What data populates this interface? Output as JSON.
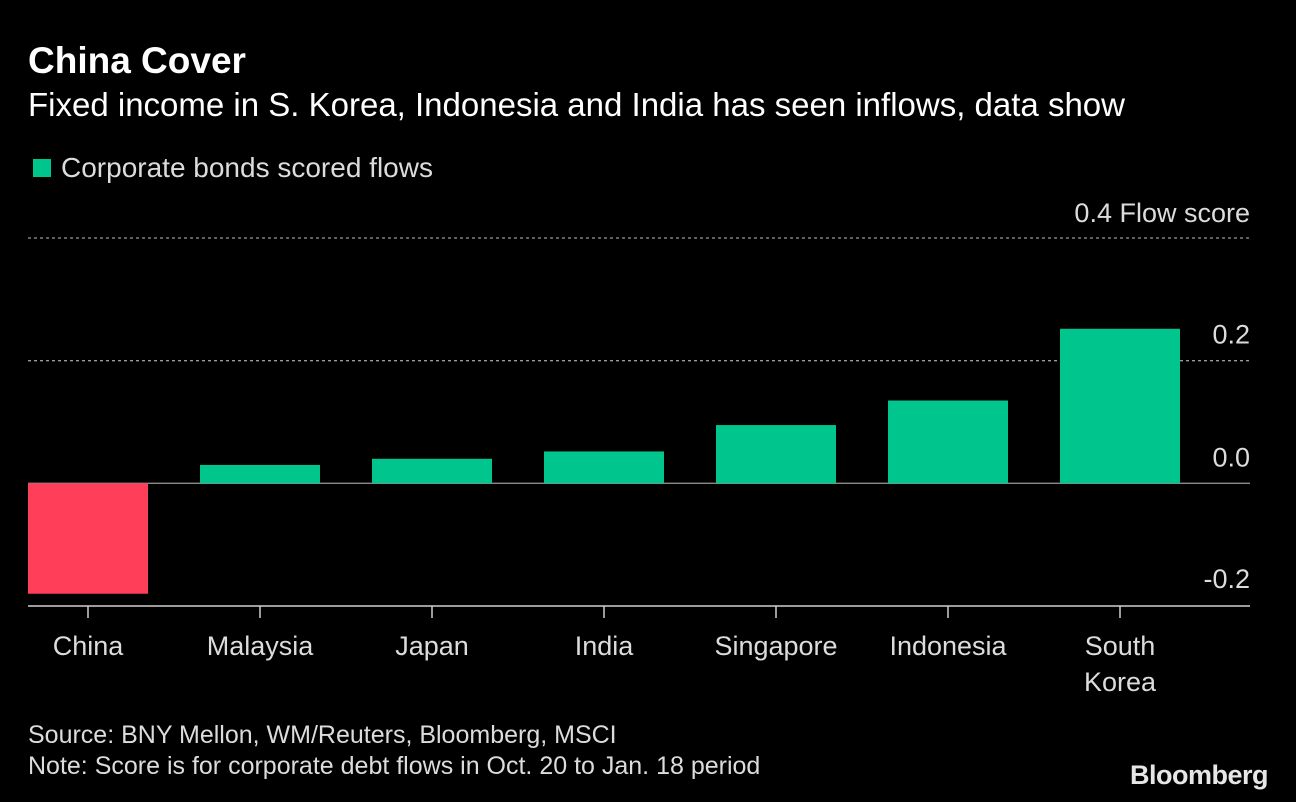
{
  "title": "China Cover",
  "subtitle": "Fixed income in S. Korea, Indonesia and India has seen inflows, data show",
  "legend": {
    "label": "Corporate bonds scored flows",
    "color": "#00c58d"
  },
  "source": "Source: BNY Mellon, WM/Reuters, Bloomberg, MSCI",
  "note": "Note: Score is for corporate debt flows in Oct. 20 to Jan. 18 period",
  "logo": "Bloomberg",
  "chart_data": {
    "type": "bar",
    "categories": [
      "China",
      "Malaysia",
      "Japan",
      "India",
      "Singapore",
      "Indonesia",
      "South Korea"
    ],
    "values": [
      -0.18,
      0.03,
      0.04,
      0.052,
      0.095,
      0.135,
      0.252
    ],
    "colors": {
      "positive": "#00c58d",
      "negative": "#ff3f5a"
    },
    "ylim": [
      -0.2,
      0.4
    ],
    "yticks": [
      {
        "value": 0.4,
        "label": "0.4 Flow score"
      },
      {
        "value": 0.2,
        "label": "0.2"
      },
      {
        "value": 0.0,
        "label": "0.0"
      },
      {
        "value": -0.2,
        "label": "-0.2"
      }
    ],
    "grid": true
  }
}
